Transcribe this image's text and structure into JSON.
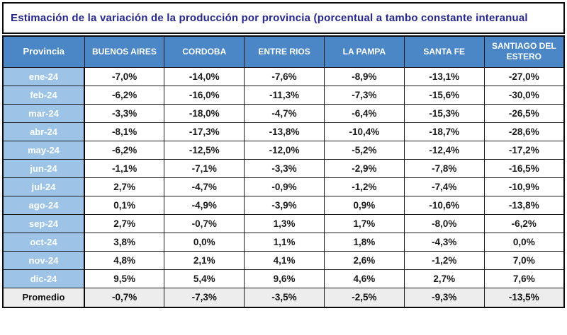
{
  "title": "Estimación de la variación de la producción por provincia (porcentual a tambo constante interanual",
  "table": {
    "corner_header": "Provincia",
    "columns": [
      "BUENOS AIRES",
      "CORDOBA",
      "ENTRE RIOS",
      "LA PAMPA",
      "SANTA FE",
      "SANTIAGO DEL ESTERO"
    ],
    "rows": [
      {
        "label": "ene-24",
        "values": [
          "-7,0%",
          "-14,0%",
          "-7,6%",
          "-8,9%",
          "-13,1%",
          "-27,0%"
        ]
      },
      {
        "label": "feb-24",
        "values": [
          "-6,2%",
          "-16,0%",
          "-11,3%",
          "-7,3%",
          "-15,6%",
          "-30,0%"
        ]
      },
      {
        "label": "mar-24",
        "values": [
          "-3,3%",
          "-18,0%",
          "-4,7%",
          "-6,4%",
          "-15,3%",
          "-26,5%"
        ]
      },
      {
        "label": "abr-24",
        "values": [
          "-8,1%",
          "-17,3%",
          "-13,8%",
          "-10,4%",
          "-18,7%",
          "-28,6%"
        ]
      },
      {
        "label": "may-24",
        "values": [
          "-6,2%",
          "-12,5%",
          "-12,0%",
          "-5,2%",
          "-12,4%",
          "-17,2%"
        ]
      },
      {
        "label": "jun-24",
        "values": [
          "-1,1%",
          "-7,1%",
          "-3,3%",
          "-2,9%",
          "-7,8%",
          "-16,5%"
        ]
      },
      {
        "label": "jul-24",
        "values": [
          "2,7%",
          "-4,7%",
          "-0,9%",
          "-1,2%",
          "-7,4%",
          "-10,9%"
        ]
      },
      {
        "label": "ago-24",
        "values": [
          "0,1%",
          "-4,9%",
          "-3,9%",
          "0,9%",
          "-10,6%",
          "-13,8%"
        ]
      },
      {
        "label": "sep-24",
        "values": [
          "2,7%",
          "-0,7%",
          "1,3%",
          "1,7%",
          "-8,0%",
          "-6,2%"
        ]
      },
      {
        "label": "oct-24",
        "values": [
          "3,8%",
          "0,0%",
          "1,1%",
          "1,8%",
          "-4,3%",
          "0,0%"
        ]
      },
      {
        "label": "nov-24",
        "values": [
          "4,8%",
          "2,1%",
          "4,1%",
          "2,6%",
          "-1,2%",
          "7,0%"
        ]
      },
      {
        "label": "dic-24",
        "values": [
          "9,5%",
          "5,4%",
          "9,6%",
          "4,6%",
          "2,7%",
          "7,6%"
        ]
      }
    ],
    "summary": {
      "label": "Promedio",
      "values": [
        "-0,7%",
        "-7,3%",
        "-3,5%",
        "-2,5%",
        "-9,3%",
        "-13,5%"
      ]
    }
  },
  "chart_data": {
    "type": "table",
    "title": "Estimación de la variación de la producción por provincia (porcentual a tambo constante interanual",
    "categories": [
      "ene-24",
      "feb-24",
      "mar-24",
      "abr-24",
      "may-24",
      "jun-24",
      "jul-24",
      "ago-24",
      "sep-24",
      "oct-24",
      "nov-24",
      "dic-24"
    ],
    "unit": "percent",
    "decimal_separator": ",",
    "series": [
      {
        "name": "BUENOS AIRES",
        "values": [
          -7.0,
          -6.2,
          -3.3,
          -8.1,
          -6.2,
          -1.1,
          2.7,
          0.1,
          2.7,
          3.8,
          4.8,
          9.5
        ],
        "average": -0.7
      },
      {
        "name": "CORDOBA",
        "values": [
          -14.0,
          -16.0,
          -18.0,
          -17.3,
          -12.5,
          -7.1,
          -4.7,
          -4.9,
          -0.7,
          0.0,
          2.1,
          5.4
        ],
        "average": -7.3
      },
      {
        "name": "ENTRE RIOS",
        "values": [
          -7.6,
          -11.3,
          -4.7,
          -13.8,
          -12.0,
          -3.3,
          -0.9,
          -3.9,
          1.3,
          1.1,
          4.1,
          9.6
        ],
        "average": -3.5
      },
      {
        "name": "LA PAMPA",
        "values": [
          -8.9,
          -7.3,
          -6.4,
          -10.4,
          -5.2,
          -2.9,
          -1.2,
          0.9,
          1.7,
          1.8,
          2.6,
          4.6
        ],
        "average": -2.5
      },
      {
        "name": "SANTA FE",
        "values": [
          -13.1,
          -15.6,
          -15.3,
          -18.7,
          -12.4,
          -7.8,
          -7.4,
          -10.6,
          -8.0,
          -4.3,
          -1.2,
          2.7
        ],
        "average": -9.3
      },
      {
        "name": "SANTIAGO DEL ESTERO",
        "values": [
          -27.0,
          -30.0,
          -26.5,
          -28.6,
          -17.2,
          -16.5,
          -10.9,
          -13.8,
          -6.2,
          0.0,
          7.0,
          7.6
        ],
        "average": -13.5
      }
    ],
    "summary_row_label": "Promedio"
  },
  "colors": {
    "title_text": "#26268C",
    "header_bg": "#4B86C6",
    "header_text": "#FFFFFF",
    "month_bg": "#9DC3E6",
    "month_text": "#FFFFFF",
    "summary_bg": "#EDEDED",
    "grid": "#1A1A1A"
  }
}
